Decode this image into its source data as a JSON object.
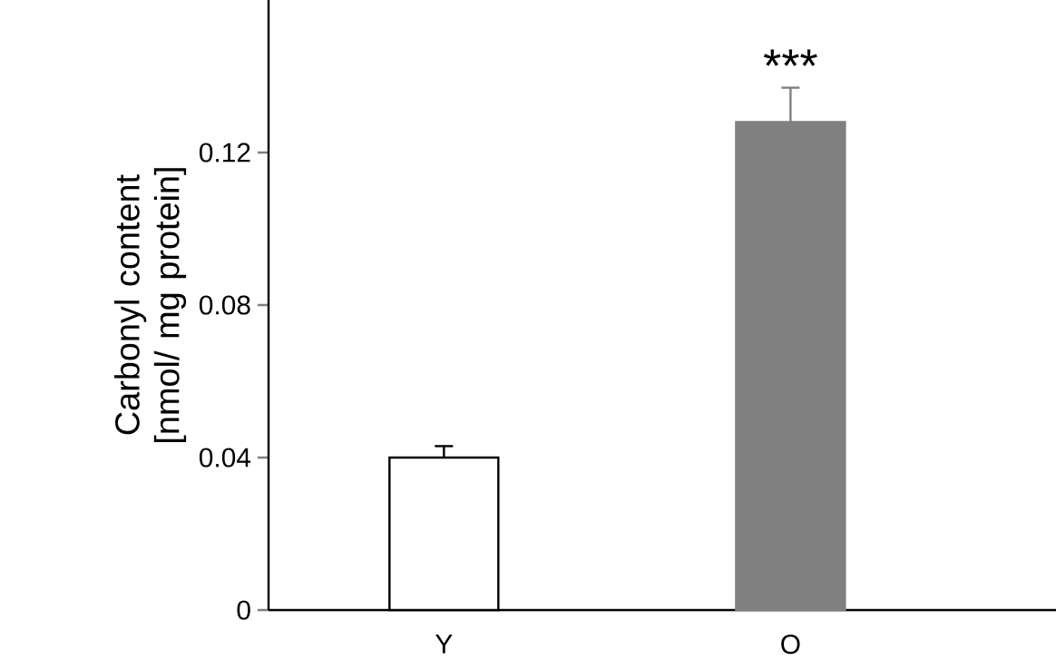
{
  "chart_data": {
    "type": "bar",
    "ylabel": "Carbonyl content [nmol/ mg protein]",
    "categories": [
      "Y",
      "O"
    ],
    "values": [
      0.04,
      0.128
    ],
    "errors": [
      0.003,
      0.009
    ],
    "colors": [
      "#ffffff",
      "#808080"
    ],
    "ylim": [
      0,
      0.16
    ],
    "yticks": [
      0,
      0.04,
      0.08,
      0.12
    ],
    "annotations": [
      {
        "text": "***",
        "x": "O",
        "y": 0.137
      }
    ]
  }
}
